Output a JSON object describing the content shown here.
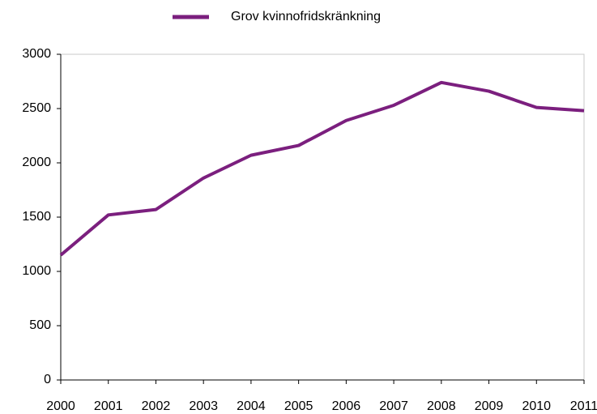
{
  "chart_data": {
    "type": "line",
    "categories": [
      "2000",
      "2001",
      "2002",
      "2003",
      "2004",
      "2005",
      "2006",
      "2007",
      "2008",
      "2009",
      "2010",
      "2011"
    ],
    "series": [
      {
        "name": "Grov kvinnofridskränkning",
        "color": "#7b1f7e",
        "values": [
          1150,
          1520,
          1570,
          1860,
          2070,
          2160,
          2390,
          2530,
          2740,
          2660,
          2510,
          2480
        ]
      }
    ],
    "ylim": [
      0,
      3000
    ],
    "yticks": [
      0,
      500,
      1000,
      1500,
      2000,
      2500,
      3000
    ],
    "grid": false,
    "legend": "top"
  }
}
